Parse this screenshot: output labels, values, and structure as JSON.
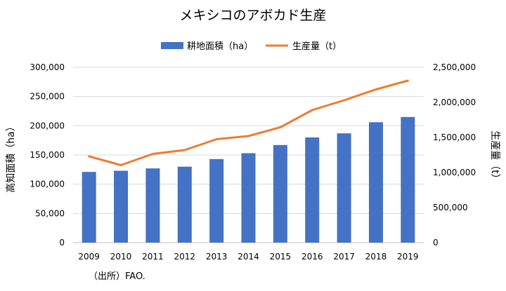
{
  "chart_data": {
    "type": "bar+line",
    "title": "メキシコのアボカド生産",
    "categories": [
      "2009",
      "2010",
      "2011",
      "2012",
      "2013",
      "2014",
      "2015",
      "2016",
      "2017",
      "2018",
      "2019"
    ],
    "series": [
      {
        "name": "耕地面積（ha）",
        "type": "bar",
        "axis": "left",
        "color": "#4472C4",
        "values": [
          121000,
          123000,
          127000,
          130000,
          143000,
          153000,
          167000,
          180000,
          187000,
          206000,
          215000
        ]
      },
      {
        "name": "生産量（t）",
        "type": "line",
        "axis": "right",
        "color": "#ED7D31",
        "values": [
          1230000,
          1105000,
          1265000,
          1320000,
          1475000,
          1520000,
          1645000,
          1890000,
          2030000,
          2185000,
          2310000
        ]
      }
    ],
    "left_axis": {
      "label": "高知面積（ha）",
      "min": 0,
      "max": 300000,
      "step": 50000,
      "tick_labels": [
        "0",
        "50,000",
        "100,000",
        "150,000",
        "200,000",
        "250,000",
        "300,000"
      ]
    },
    "right_axis": {
      "label": "生産量（t）",
      "min": 0,
      "max": 2500000,
      "step": 500000,
      "tick_labels": [
        "0",
        "500,000",
        "1,000,000",
        "1,500,000",
        "2,000,000",
        "2,500,000"
      ]
    },
    "grid": true,
    "legend_position": "top"
  },
  "source_note": "（出所）FAO."
}
